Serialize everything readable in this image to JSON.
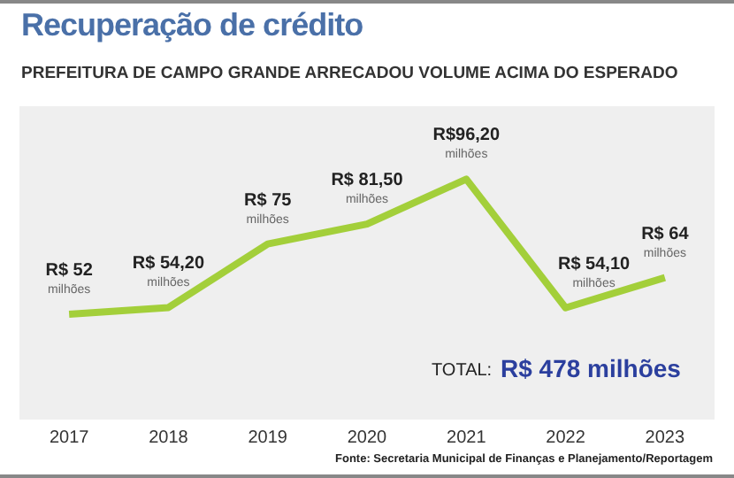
{
  "chart_data": {
    "type": "line",
    "title": "Recuperação de crédito",
    "subtitle": "PREFEITURA DE CAMPO GRANDE ARRECADOU VOLUME ACIMA DO ESPERADO",
    "categories": [
      "2017",
      "2018",
      "2019",
      "2020",
      "2021",
      "2022",
      "2023"
    ],
    "values": [
      52,
      54.2,
      75,
      81.5,
      96.2,
      54.1,
      64
    ],
    "value_labels": [
      "R$ 52 milhões",
      "R$ 54,20 milhões",
      "R$ 75 milhões",
      "R$ 81,50 milhões",
      "R$96,20 milhões",
      "R$ 54,10 milhões",
      "R$ 64 milhões"
    ],
    "color": "#a3cf3a",
    "marker": "none",
    "line_style": "solid",
    "grid": false,
    "legend": false,
    "tick_labels": "x",
    "annotations": [
      "TOTAL:",
      "R$ 478 milhões",
      "Fonte: Secretaria Municipal de Finanças e Planejamento/Reportagem"
    ]
  }
}
